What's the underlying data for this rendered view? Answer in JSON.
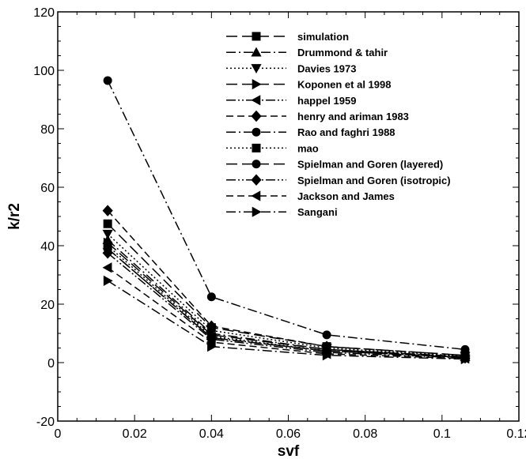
{
  "chart_data": {
    "type": "line",
    "title": "",
    "xlabel": "svf",
    "ylabel": "k/r2",
    "xlim": [
      0,
      0.12
    ],
    "ylim": [
      -20,
      120
    ],
    "xticks": [
      "0",
      "0.02",
      "0.04",
      "0.06",
      "0.08",
      "0.1",
      "0.12"
    ],
    "yticks": [
      "-20",
      "0",
      "20",
      "40",
      "60",
      "80",
      "100",
      "120"
    ],
    "grid": false,
    "legend_position": "top-right",
    "x": [
      0.013,
      0.04,
      0.07,
      0.106
    ],
    "series": [
      {
        "name": "simulation",
        "marker": "square",
        "dash": "long-dash",
        "values": [
          47.5,
          12,
          5.5,
          2.5
        ]
      },
      {
        "name": "Drummond & tahir",
        "marker": "triangle-up",
        "dash": "dash-dot",
        "values": [
          42,
          10,
          4.5,
          2
        ]
      },
      {
        "name": "Davies 1973",
        "marker": "triangle-down",
        "dash": "dotted",
        "values": [
          44,
          11,
          5,
          2.2
        ]
      },
      {
        "name": "Koponen et al 1998",
        "marker": "triangle-right",
        "dash": "long-dash",
        "values": [
          41,
          9.5,
          4.5,
          2
        ]
      },
      {
        "name": "happel 1959",
        "marker": "triangle-left",
        "dash": "dash-dot-dot",
        "values": [
          39,
          8.5,
          4,
          1.8
        ]
      },
      {
        "name": "henry and ariman 1983",
        "marker": "diamond",
        "dash": "dash",
        "values": [
          52,
          12.5,
          5.5,
          2.5
        ]
      },
      {
        "name": "Rao and faghri 1988",
        "marker": "circle",
        "dash": "dash-dot",
        "values": [
          96.5,
          22.5,
          9.5,
          4.5
        ]
      },
      {
        "name": "mao",
        "marker": "square",
        "dash": "dotted",
        "values": [
          40,
          9,
          4,
          2
        ]
      },
      {
        "name": "Spielman and Goren (layered)",
        "marker": "circle",
        "dash": "long-dash",
        "values": [
          39,
          8.5,
          4,
          1.8
        ]
      },
      {
        "name": "Spielman and Goren (isotropic)",
        "marker": "diamond",
        "dash": "dash-dot-dot",
        "values": [
          37.5,
          8,
          3.5,
          1.6
        ]
      },
      {
        "name": "Jackson and James",
        "marker": "triangle-left",
        "dash": "dash",
        "values": [
          32.5,
          7,
          3,
          1.4
        ]
      },
      {
        "name": "Sangani",
        "marker": "triangle-right",
        "dash": "dash-dot",
        "values": [
          28,
          5.5,
          2.5,
          1.2
        ]
      }
    ]
  }
}
